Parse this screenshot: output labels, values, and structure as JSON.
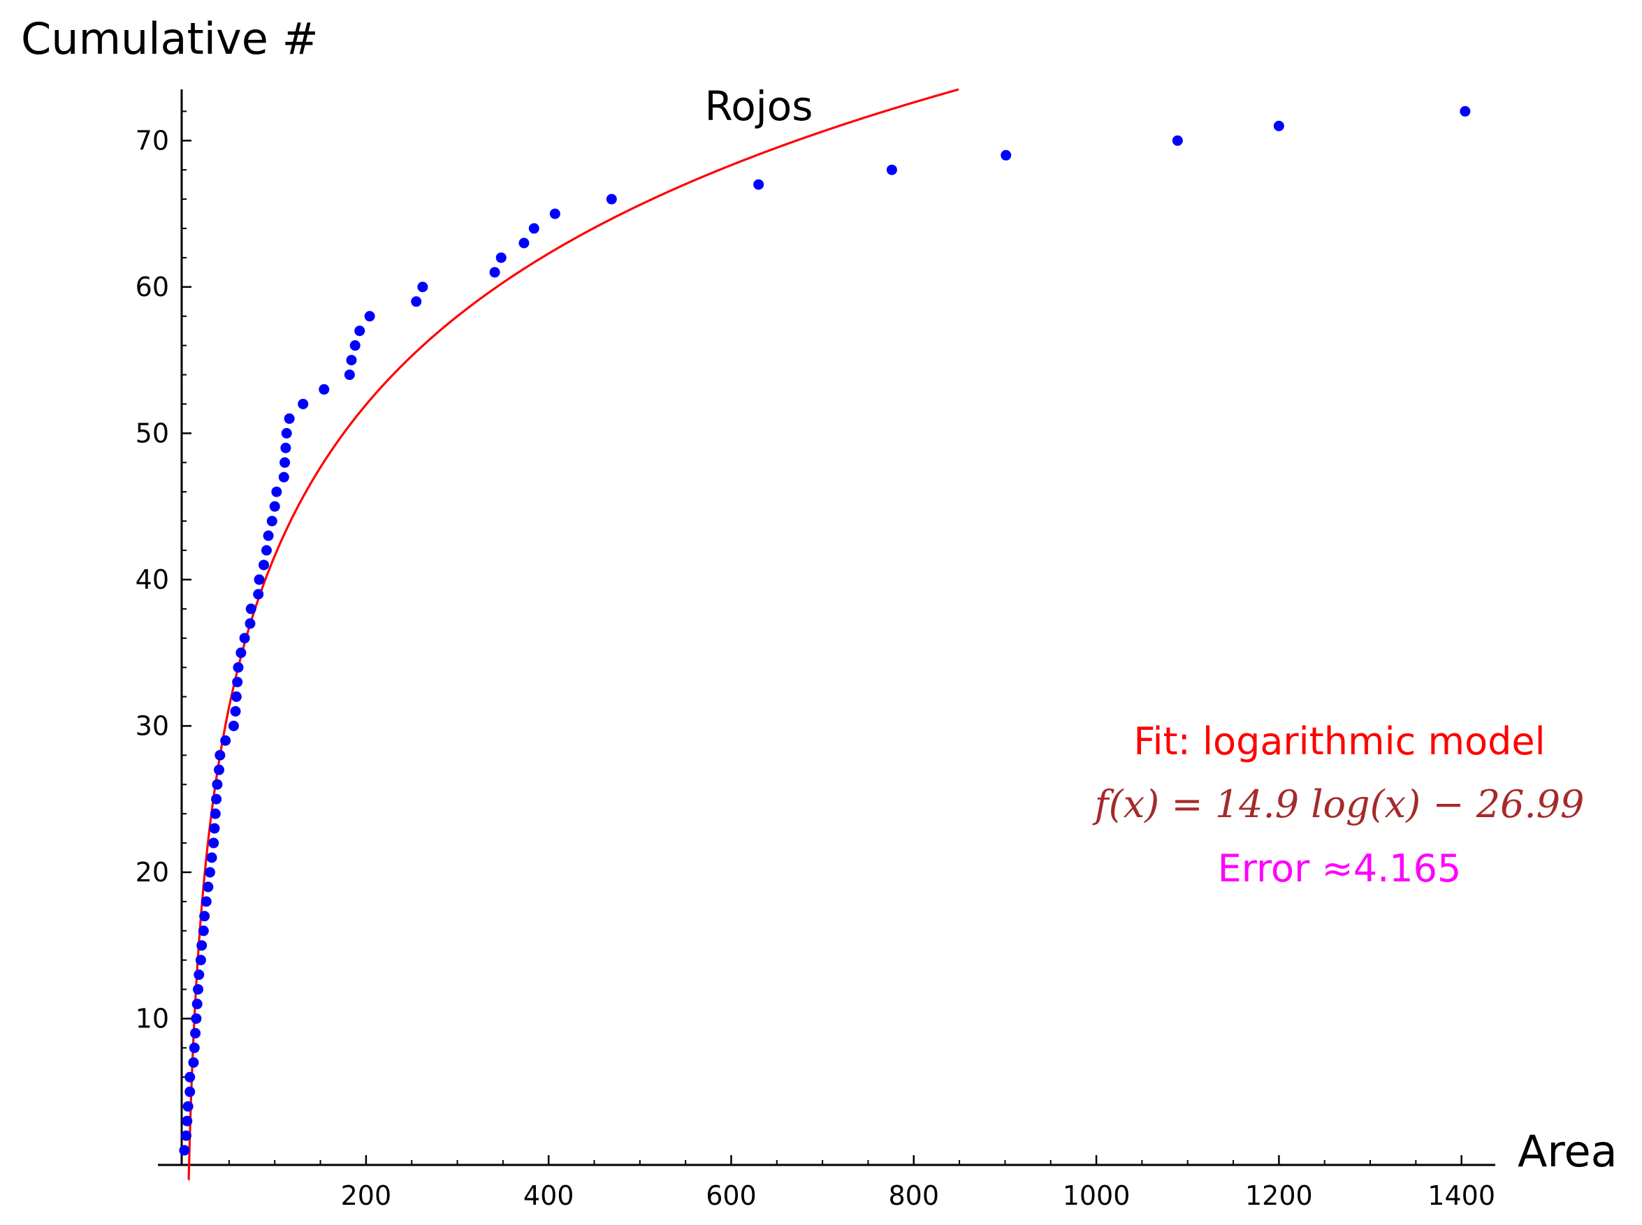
{
  "chart_data": {
    "type": "scatter",
    "title": "Rojos",
    "xlabel": "Area",
    "ylabel": "Cumulative #",
    "xlim": [
      -28,
      1437
    ],
    "ylim": [
      0,
      73.5
    ],
    "xticks": [
      200,
      400,
      600,
      800,
      1000,
      1200,
      1400
    ],
    "yticks": [
      10,
      20,
      30,
      40,
      50,
      60,
      70
    ],
    "x_minor_step": 50,
    "y_minor_step": 2,
    "grid": false,
    "series": [
      {
        "type": "scatter",
        "color": "#0000ff",
        "points": [
          [
            1,
            1
          ],
          [
            3,
            2
          ],
          [
            4,
            3
          ],
          [
            5,
            4
          ],
          [
            7,
            5
          ],
          [
            7,
            6
          ],
          [
            11,
            7
          ],
          [
            12,
            8
          ],
          [
            13,
            9
          ],
          [
            14,
            10
          ],
          [
            15,
            11
          ],
          [
            16,
            12
          ],
          [
            17,
            13
          ],
          [
            19,
            14
          ],
          [
            20,
            15
          ],
          [
            22,
            16
          ],
          [
            23,
            17
          ],
          [
            25,
            18
          ],
          [
            27,
            19
          ],
          [
            29,
            20
          ],
          [
            31,
            21
          ],
          [
            33,
            22
          ],
          [
            34,
            23
          ],
          [
            35,
            24
          ],
          [
            36,
            25
          ],
          [
            37,
            26
          ],
          [
            39,
            27
          ],
          [
            40,
            28
          ],
          [
            46,
            29
          ],
          [
            55,
            30
          ],
          [
            57,
            31
          ],
          [
            58,
            32
          ],
          [
            59,
            33
          ],
          [
            60,
            34
          ],
          [
            63,
            35
          ],
          [
            67,
            36
          ],
          [
            73,
            37
          ],
          [
            74,
            38
          ],
          [
            82,
            39
          ],
          [
            83,
            40
          ],
          [
            88,
            41
          ],
          [
            91,
            42
          ],
          [
            93,
            43
          ],
          [
            97,
            44
          ],
          [
            100,
            45
          ],
          [
            102,
            46
          ],
          [
            110,
            47
          ],
          [
            111,
            48
          ],
          [
            112,
            49
          ],
          [
            113,
            50
          ],
          [
            116,
            51
          ],
          [
            131,
            52
          ],
          [
            154,
            53
          ],
          [
            182,
            54
          ],
          [
            184,
            55
          ],
          [
            188,
            56
          ],
          [
            193,
            57
          ],
          [
            204,
            58
          ],
          [
            255,
            59
          ],
          [
            262,
            60
          ],
          [
            341,
            61
          ],
          [
            348,
            62
          ],
          [
            373,
            63
          ],
          [
            384,
            64
          ],
          [
            407,
            65
          ],
          [
            469,
            66
          ],
          [
            630,
            67
          ],
          [
            776,
            68
          ],
          [
            901,
            69
          ],
          [
            1089,
            70
          ],
          [
            1200,
            71
          ],
          [
            1404,
            72
          ]
        ]
      },
      {
        "type": "line",
        "color": "#ff0000",
        "fit": {
          "a": 14.9,
          "b": -26.99,
          "form": "a*log(x)+b"
        }
      }
    ],
    "annotations": {
      "fit_label": "Fit: logarithmic model",
      "formula": "f(x) = 14.9 log(x) − 26.99",
      "error": "Error ≈4.165"
    },
    "colors": {
      "axes": "#000000",
      "fit_label": "#ff0000",
      "formula": "#a52a2a",
      "error": "#ff00ff"
    }
  }
}
